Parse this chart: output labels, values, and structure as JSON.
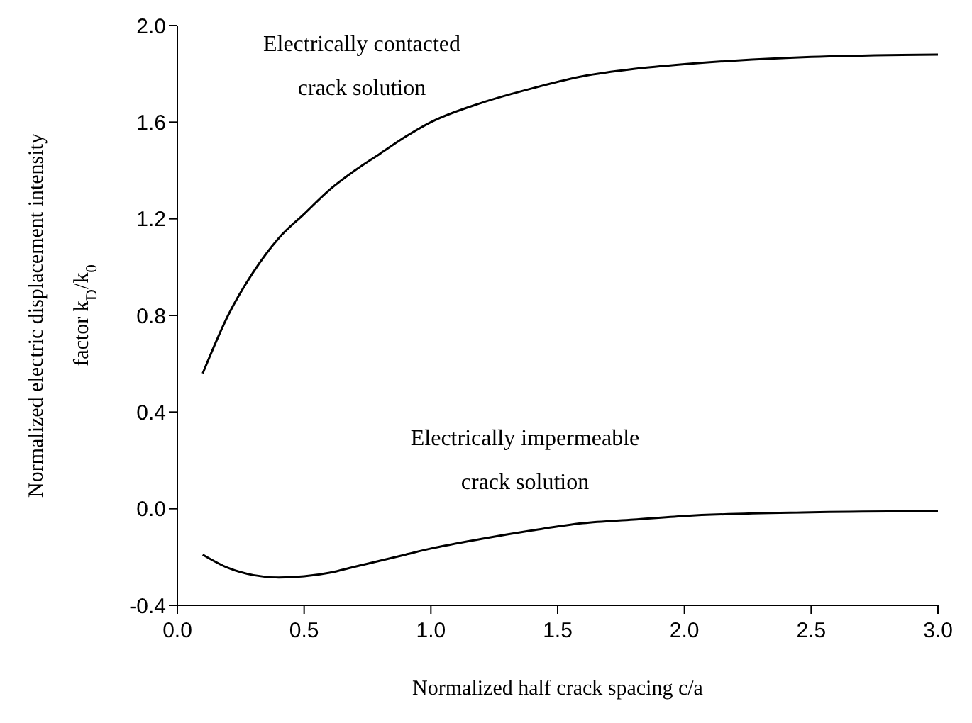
{
  "chart_data": {
    "type": "line",
    "xlabel": "Normalized half crack spacing c/a",
    "ylabel": "Normalized electric displacement intensity factor k$_{D}$/k$_{0}$",
    "xlim": [
      0,
      3
    ],
    "ylim": [
      -0.4,
      2
    ],
    "xticks": [
      {
        "value": 0,
        "label": "0.0"
      },
      {
        "value": 0.5,
        "label": "0.5"
      },
      {
        "value": 1,
        "label": "1.0"
      },
      {
        "value": 1.5,
        "label": "1.5"
      },
      {
        "value": 2,
        "label": "2.0"
      },
      {
        "value": 2.5,
        "label": "2.5"
      },
      {
        "value": 3,
        "label": "3.0"
      }
    ],
    "yticks": [
      {
        "value": -0.4,
        "label": "-0.4"
      },
      {
        "value": 0,
        "label": "0.0"
      },
      {
        "value": 0.4,
        "label": "0.4"
      },
      {
        "value": 0.8,
        "label": "0.8"
      },
      {
        "value": 1.2,
        "label": "1.2"
      },
      {
        "value": 1.6,
        "label": "1.6"
      },
      {
        "value": 2,
        "label": "2.0"
      }
    ],
    "marker": "none",
    "line_style": "solid",
    "series": [
      {
        "color": "#000000",
        "x": [
          0.1,
          0.2,
          0.3,
          0.4,
          0.5,
          0.6,
          0.7,
          0.8,
          0.9,
          1.0,
          1.2,
          1.4,
          1.6,
          1.8,
          2.0,
          2.2,
          2.5,
          3.0
        ],
        "values": [
          0.56,
          0.8,
          0.98,
          1.12,
          1.22,
          1.32,
          1.4,
          1.47,
          1.54,
          1.6,
          1.68,
          1.74,
          1.79,
          1.82,
          1.84,
          1.855,
          1.87,
          1.88
        ]
      },
      {
        "color": "#000000",
        "x": [
          0.1,
          0.2,
          0.3,
          0.4,
          0.5,
          0.6,
          0.7,
          0.8,
          0.9,
          1.0,
          1.2,
          1.4,
          1.6,
          1.8,
          2.0,
          2.5,
          3.0
        ],
        "values": [
          -0.19,
          -0.245,
          -0.275,
          -0.285,
          -0.28,
          -0.265,
          -0.24,
          -0.215,
          -0.19,
          -0.165,
          -0.125,
          -0.09,
          -0.06,
          -0.045,
          -0.03,
          -0.015,
          -0.01
        ]
      }
    ],
    "annotations": [
      "Electrically contacted\ncrack solution",
      "Electrically impermeable\ncrack solution"
    ]
  }
}
